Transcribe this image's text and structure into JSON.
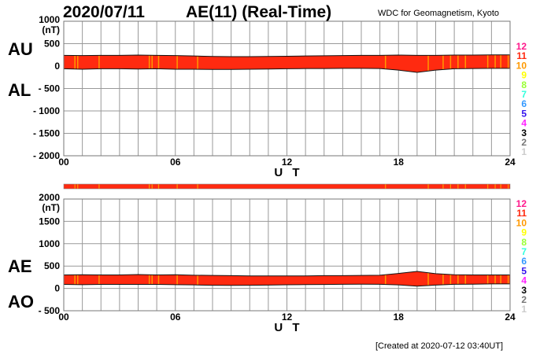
{
  "title_date": "2020/07/11",
  "title_index": "AE(11) (Real-Time)",
  "institution": "WDC for Geomagnetism, Kyoto",
  "created": "[Created at 2020-07-12 03:40UT]",
  "level_legend": [
    {
      "label": "12",
      "color": "#ff1a8c"
    },
    {
      "label": "11",
      "color": "#ff2a10"
    },
    {
      "label": "10",
      "color": "#ff9900"
    },
    {
      "label": "9",
      "color": "#ffff00"
    },
    {
      "label": "8",
      "color": "#99ff33"
    },
    {
      "label": "7",
      "color": "#33ffdd"
    },
    {
      "label": "6",
      "color": "#3399ff"
    },
    {
      "label": "5",
      "color": "#3311ee"
    },
    {
      "label": "4",
      "color": "#ff22ff"
    },
    {
      "label": "3",
      "color": "#000000"
    },
    {
      "label": "2",
      "color": "#777777"
    },
    {
      "label": "1",
      "color": "#cccccc"
    }
  ],
  "chart_data": [
    {
      "type": "area",
      "panel": "AU/AL",
      "label_upper": "AU",
      "label_lower": "AL",
      "ylabel": "(nT)",
      "xlabel": "U T",
      "xlim": [
        0,
        24
      ],
      "ylim": [
        -2000,
        1000
      ],
      "yticks": [
        "1000",
        "500",
        "0",
        "- 500",
        "- 1000",
        "- 1500",
        "- 2000"
      ],
      "ytick_values": [
        1000,
        500,
        0,
        -500,
        -1000,
        -1500,
        -2000
      ],
      "xticks": [
        "00",
        "06",
        "12",
        "18",
        "24"
      ],
      "xtick_values": [
        0,
        6,
        12,
        18,
        24
      ],
      "grid": true,
      "x": [
        0,
        1,
        2,
        3,
        4,
        5,
        6,
        7,
        8,
        9,
        10,
        11,
        12,
        13,
        14,
        15,
        16,
        17,
        18,
        19,
        20,
        21,
        22,
        23,
        24
      ],
      "series": [
        {
          "name": "AU",
          "values": [
            240,
            235,
            240,
            240,
            245,
            240,
            235,
            225,
            215,
            210,
            210,
            215,
            220,
            225,
            230,
            235,
            240,
            240,
            245,
            240,
            240,
            245,
            245,
            250,
            250
          ]
        },
        {
          "name": "AL",
          "values": [
            -60,
            -70,
            -60,
            -60,
            -65,
            -60,
            -70,
            -70,
            -75,
            -75,
            -70,
            -65,
            -60,
            -55,
            -55,
            -50,
            -50,
            -55,
            -90,
            -140,
            -90,
            -60,
            -55,
            -50,
            -50
          ]
        }
      ]
    },
    {
      "type": "area",
      "panel": "AE/AO",
      "label_upper": "AE",
      "label_lower": "AO",
      "ylabel": "(nT)",
      "xlabel": "U T",
      "xlim": [
        0,
        24
      ],
      "ylim": [
        -500,
        2000
      ],
      "yticks": [
        "2000",
        "1500",
        "1000",
        "500",
        "0",
        "- 500"
      ],
      "ytick_values": [
        2000,
        1500,
        1000,
        500,
        0,
        -500
      ],
      "xticks": [
        "00",
        "06",
        "12",
        "18",
        "24"
      ],
      "xtick_values": [
        0,
        6,
        12,
        18,
        24
      ],
      "grid": true,
      "x": [
        0,
        1,
        2,
        3,
        4,
        5,
        6,
        7,
        8,
        9,
        10,
        11,
        12,
        13,
        14,
        15,
        16,
        17,
        18,
        19,
        20,
        21,
        22,
        23,
        24
      ],
      "series": [
        {
          "name": "AE",
          "values": [
            300,
            305,
            300,
            300,
            310,
            300,
            305,
            295,
            290,
            285,
            280,
            280,
            280,
            280,
            285,
            285,
            290,
            295,
            335,
            380,
            330,
            305,
            300,
            300,
            300
          ]
        },
        {
          "name": "AO",
          "values": [
            90,
            83,
            90,
            90,
            90,
            90,
            83,
            78,
            70,
            68,
            70,
            75,
            80,
            85,
            88,
            93,
            95,
            93,
            78,
            50,
            75,
            93,
            95,
            100,
            100
          ]
        }
      ]
    }
  ],
  "station_level": {
    "default_level": "11",
    "level_10_times": [
      0.6,
      0.75,
      1.9,
      4.6,
      4.75,
      5.1,
      6.1,
      7.2,
      17.3,
      19.6,
      20.4,
      20.8,
      21.2,
      21.6,
      22.8,
      23.2,
      23.5,
      23.9
    ]
  }
}
